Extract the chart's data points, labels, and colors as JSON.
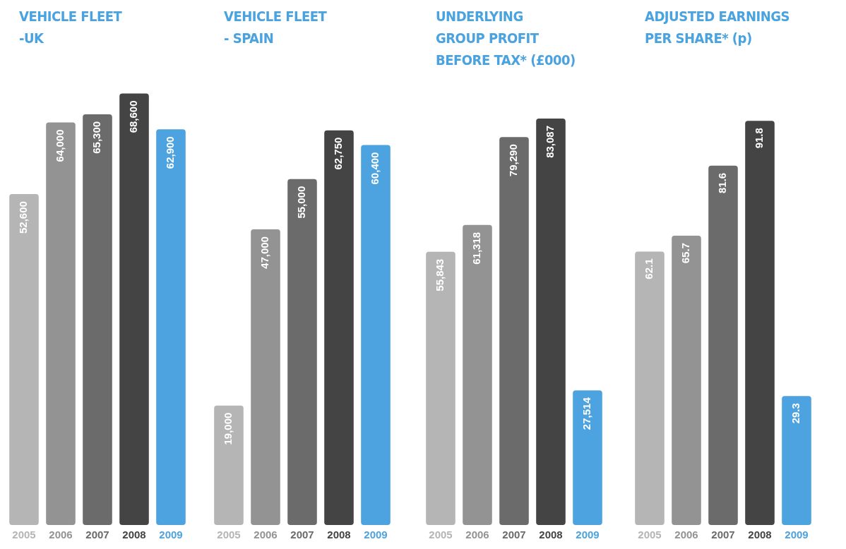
{
  "chart_data": [
    {
      "type": "bar",
      "title": "VEHICLE FLEET\n-UK",
      "categories": [
        "2005",
        "2006",
        "2007",
        "2008",
        "2009"
      ],
      "values": [
        52600,
        64000,
        65300,
        68600,
        62900
      ],
      "value_labels": [
        "52,600",
        "64,000",
        "65,300",
        "68,600",
        "62,900"
      ],
      "colors": [
        "#b5b5b5",
        "#939393",
        "#6b6b6b",
        "#444444",
        "#4da3e0"
      ],
      "tick_labels": "x",
      "grid": false,
      "legend": false
    },
    {
      "type": "bar",
      "title": "VEHICLE FLEET\n- SPAIN",
      "categories": [
        "2005",
        "2006",
        "2007",
        "2008",
        "2009"
      ],
      "values": [
        19000,
        47000,
        55000,
        62750,
        60400
      ],
      "value_labels": [
        "19,000",
        "47,000",
        "55,000",
        "62,750",
        "60,400"
      ],
      "colors": [
        "#b5b5b5",
        "#939393",
        "#6b6b6b",
        "#444444",
        "#4da3e0"
      ],
      "tick_labels": "x",
      "grid": false,
      "legend": false
    },
    {
      "type": "bar",
      "title": "UNDERLYING\nGROUP PROFIT\nBEFORE TAX* (£000)",
      "categories": [
        "2005",
        "2006",
        "2007",
        "2008",
        "2009"
      ],
      "values": [
        55843,
        61318,
        79290,
        83087,
        27514
      ],
      "value_labels": [
        "55,843",
        "61,318",
        "79,290",
        "83,087",
        "27,514"
      ],
      "colors": [
        "#b5b5b5",
        "#939393",
        "#6b6b6b",
        "#444444",
        "#4da3e0"
      ],
      "tick_labels": "x",
      "grid": false,
      "legend": false
    },
    {
      "type": "bar",
      "title": "ADJUSTED EARNINGS\nPER SHARE* (p)",
      "categories": [
        "2005",
        "2006",
        "2007",
        "2008",
        "2009"
      ],
      "values": [
        62.1,
        65.7,
        81.6,
        91.8,
        29.3
      ],
      "value_labels": [
        "62.1",
        "65.7",
        "81.6",
        "91.8",
        "29.3"
      ],
      "colors": [
        "#b5b5b5",
        "#939393",
        "#6b6b6b",
        "#444444",
        "#4da3e0"
      ],
      "tick_labels": "x",
      "grid": false,
      "legend": false
    }
  ]
}
